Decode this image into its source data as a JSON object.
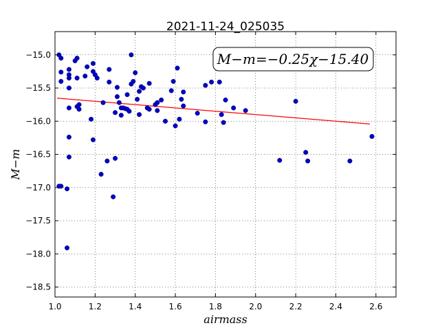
{
  "chart_data": {
    "type": "scatter",
    "title": "2021-11-24_025035",
    "xlabel": "airmass",
    "ylabel": "M−m",
    "annotation": "M−m=−0.25χ−15.40",
    "xlim": [
      1.0,
      2.7
    ],
    "ylim": [
      -18.65,
      -14.65
    ],
    "x_ticks": [
      1.0,
      1.2,
      1.4,
      1.6,
      1.8,
      2.0,
      2.2,
      2.4,
      2.6
    ],
    "x_tick_labels": [
      "1.0",
      "1.2",
      "1.4",
      "1.6",
      "1.8",
      "2.0",
      "2.2",
      "2.4",
      "2.6"
    ],
    "y_ticks": [
      -15.0,
      -15.5,
      -16.0,
      -16.5,
      -17.0,
      -17.5,
      -18.0,
      -18.5
    ],
    "y_tick_labels": [
      "−15.0",
      "−15.5",
      "−16.0",
      "−16.5",
      "−17.0",
      "−17.5",
      "−18.0",
      "−18.5"
    ],
    "grid": true,
    "fit_line": {
      "slope": -0.25,
      "intercept": -15.4,
      "x_range": [
        1.01,
        2.57
      ],
      "color": "#ff0000"
    },
    "marker_color": "#0000cc",
    "points": [
      [
        1.02,
        -15.0
      ],
      [
        1.03,
        -15.05
      ],
      [
        1.03,
        -15.26
      ],
      [
        1.03,
        -15.4
      ],
      [
        1.02,
        -16.98
      ],
      [
        1.03,
        -16.98
      ],
      [
        1.06,
        -17.02
      ],
      [
        1.06,
        -17.91
      ],
      [
        1.07,
        -15.22
      ],
      [
        1.07,
        -15.3
      ],
      [
        1.07,
        -15.35
      ],
      [
        1.07,
        -15.5
      ],
      [
        1.07,
        -15.8
      ],
      [
        1.07,
        -16.24
      ],
      [
        1.07,
        -16.54
      ],
      [
        1.1,
        -15.09
      ],
      [
        1.11,
        -15.05
      ],
      [
        1.11,
        -15.35
      ],
      [
        1.11,
        -15.78
      ],
      [
        1.12,
        -15.75
      ],
      [
        1.12,
        -15.82
      ],
      [
        1.15,
        -15.32
      ],
      [
        1.16,
        -15.18
      ],
      [
        1.18,
        -15.97
      ],
      [
        1.19,
        -16.28
      ],
      [
        1.19,
        -15.13
      ],
      [
        1.19,
        -15.25
      ],
      [
        1.2,
        -15.3
      ],
      [
        1.21,
        -15.35
      ],
      [
        1.23,
        -16.8
      ],
      [
        1.24,
        -15.72
      ],
      [
        1.26,
        -16.6
      ],
      [
        1.27,
        -15.22
      ],
      [
        1.27,
        -15.41
      ],
      [
        1.29,
        -17.14
      ],
      [
        1.3,
        -16.56
      ],
      [
        1.3,
        -15.87
      ],
      [
        1.31,
        -15.49
      ],
      [
        1.31,
        -15.63
      ],
      [
        1.32,
        -15.72
      ],
      [
        1.33,
        -15.8
      ],
      [
        1.33,
        -15.91
      ],
      [
        1.34,
        -15.8
      ],
      [
        1.35,
        -15.81
      ],
      [
        1.36,
        -15.6
      ],
      [
        1.36,
        -15.82
      ],
      [
        1.37,
        -15.85
      ],
      [
        1.38,
        -15.0
      ],
      [
        1.38,
        -15.44
      ],
      [
        1.39,
        -15.4
      ],
      [
        1.4,
        -15.27
      ],
      [
        1.41,
        -15.67
      ],
      [
        1.42,
        -15.9
      ],
      [
        1.42,
        -15.55
      ],
      [
        1.43,
        -15.48
      ],
      [
        1.44,
        -15.5
      ],
      [
        1.46,
        -15.8
      ],
      [
        1.47,
        -15.82
      ],
      [
        1.47,
        -15.43
      ],
      [
        1.5,
        -15.75
      ],
      [
        1.51,
        -15.72
      ],
      [
        1.51,
        -15.84
      ],
      [
        1.53,
        -15.68
      ],
      [
        1.55,
        -16.0
      ],
      [
        1.58,
        -15.54
      ],
      [
        1.59,
        -15.4
      ],
      [
        1.6,
        -16.07
      ],
      [
        1.61,
        -15.2
      ],
      [
        1.62,
        -15.97
      ],
      [
        1.63,
        -15.67
      ],
      [
        1.64,
        -15.56
      ],
      [
        1.64,
        -15.77
      ],
      [
        1.71,
        -15.88
      ],
      [
        1.75,
        -15.46
      ],
      [
        1.75,
        -16.01
      ],
      [
        1.78,
        -15.41
      ],
      [
        1.82,
        -15.41
      ],
      [
        1.83,
        -15.9
      ],
      [
        1.84,
        -16.02
      ],
      [
        1.85,
        -15.68
      ],
      [
        1.89,
        -15.8
      ],
      [
        1.95,
        -15.84
      ],
      [
        2.12,
        -16.59
      ],
      [
        2.2,
        -15.7
      ],
      [
        2.25,
        -16.47
      ],
      [
        2.26,
        -16.6
      ],
      [
        2.47,
        -16.6
      ],
      [
        2.58,
        -16.23
      ]
    ]
  }
}
